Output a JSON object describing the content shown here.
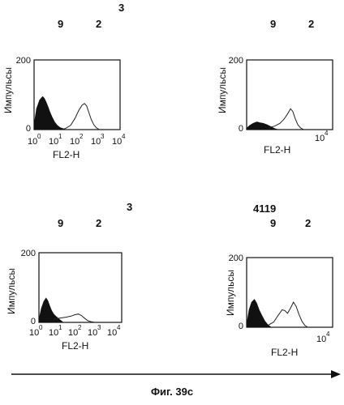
{
  "figure": {
    "caption": "Фиг. 39с",
    "arrow_color": "#111111",
    "filled_color": "#111111",
    "open_line_color": "#222222"
  },
  "chart_data": [
    {
      "type": "area",
      "panel": "top-left",
      "top_labels": [
        "9",
        "2",
        "3"
      ],
      "xlabel": "FL2-H",
      "ylabel": "Импульсы",
      "xscale": "log",
      "xlim": [
        1,
        10000
      ],
      "ylim": [
        0,
        200
      ],
      "xticks": [
        "10",
        "0",
        "10",
        "1",
        "10",
        "2",
        "10",
        "3",
        "10",
        "4"
      ],
      "yticks": [
        "0",
        "200"
      ],
      "series": [
        {
          "style": "filled",
          "x": [
            1,
            1.3,
            1.8,
            2.5,
            3,
            3.6,
            4.5,
            5.5,
            7,
            9,
            12,
            16,
            22,
            30
          ],
          "y": [
            15,
            60,
            85,
            95,
            90,
            80,
            65,
            50,
            35,
            22,
            12,
            6,
            3,
            0
          ]
        },
        {
          "style": "open",
          "x": [
            20,
            30,
            50,
            80,
            120,
            170,
            220,
            280,
            350,
            450,
            600,
            800,
            1100
          ],
          "y": [
            0,
            4,
            12,
            32,
            55,
            70,
            75,
            68,
            50,
            30,
            14,
            5,
            0
          ]
        }
      ]
    },
    {
      "type": "area",
      "panel": "top-right",
      "top_labels": [
        "9",
        "2"
      ],
      "xlabel": "FL2-H",
      "ylabel": "Импульсы",
      "xscale": "log",
      "xlim": [
        1,
        10000
      ],
      "ylim": [
        0,
        200
      ],
      "xticks": [
        "10",
        "4"
      ],
      "yticks": [
        "0",
        "200"
      ],
      "series": [
        {
          "style": "filled",
          "x": [
            1,
            1.4,
            2,
            3,
            4,
            6,
            9,
            14,
            20,
            30
          ],
          "y": [
            4,
            12,
            18,
            22,
            20,
            18,
            14,
            8,
            3,
            0
          ]
        },
        {
          "style": "open",
          "x": [
            10,
            20,
            35,
            55,
            80,
            110,
            140,
            180,
            240,
            320,
            450
          ],
          "y": [
            5,
            10,
            18,
            30,
            45,
            60,
            52,
            32,
            14,
            5,
            0
          ]
        }
      ]
    },
    {
      "type": "area",
      "panel": "bottom-left",
      "top_labels": [
        "9",
        "2",
        "3"
      ],
      "xlabel": "FL2-H",
      "ylabel": "Импульсы",
      "xscale": "log",
      "xlim": [
        1,
        10000
      ],
      "ylim": [
        0,
        200
      ],
      "xticks": [
        "10",
        "0",
        "10",
        "1",
        "10",
        "2",
        "10",
        "3",
        "10",
        "4"
      ],
      "yticks": [
        "0",
        "200"
      ],
      "series": [
        {
          "style": "filled",
          "x": [
            1,
            1.3,
            1.7,
            2.2,
            2.7,
            3.3,
            4,
            5,
            6.5,
            8.5,
            11,
            15
          ],
          "y": [
            8,
            40,
            60,
            70,
            62,
            48,
            35,
            25,
            18,
            12,
            6,
            0
          ]
        },
        {
          "style": "open",
          "x": [
            5,
            10,
            20,
            35,
            55,
            80,
            110,
            160,
            230,
            330,
            500
          ],
          "y": [
            8,
            12,
            15,
            18,
            22,
            24,
            20,
            12,
            5,
            2,
            0
          ]
        }
      ]
    },
    {
      "type": "area",
      "panel": "bottom-right",
      "top_labels": [
        "4119",
        "9",
        "2"
      ],
      "xlabel": "FL2-H",
      "ylabel": "Импульсы",
      "xscale": "log",
      "xlim": [
        1,
        10000
      ],
      "ylim": [
        0,
        200
      ],
      "xticks": [
        "10",
        "4"
      ],
      "yticks": [
        "0",
        "200"
      ],
      "series": [
        {
          "style": "filled",
          "x": [
            1,
            1.3,
            1.7,
            2.3,
            3,
            3.8,
            5,
            7,
            10,
            14
          ],
          "y": [
            8,
            50,
            72,
            80,
            68,
            50,
            35,
            18,
            6,
            0
          ]
        },
        {
          "style": "open",
          "x": [
            10,
            18,
            30,
            45,
            60,
            80,
            110,
            150,
            200,
            280,
            380,
            520,
            700
          ],
          "y": [
            6,
            15,
            35,
            50,
            48,
            40,
            55,
            72,
            60,
            35,
            16,
            5,
            0
          ]
        }
      ]
    }
  ]
}
